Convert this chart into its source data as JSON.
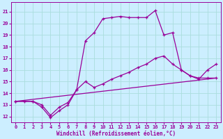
{
  "xlabel": "Windchill (Refroidissement éolien,°C)",
  "bg_color": "#cceeff",
  "line_color": "#990099",
  "grid_color": "#aadddd",
  "xlim": [
    -0.5,
    23.5
  ],
  "ylim": [
    11.5,
    21.8
  ],
  "xticks": [
    0,
    1,
    2,
    3,
    4,
    5,
    6,
    7,
    8,
    9,
    10,
    11,
    12,
    13,
    14,
    15,
    16,
    17,
    18,
    19,
    20,
    21,
    22,
    23
  ],
  "yticks": [
    12,
    13,
    14,
    15,
    16,
    17,
    18,
    19,
    20,
    21
  ],
  "line1_x": [
    0,
    1,
    2,
    3,
    4,
    5,
    6,
    7,
    8,
    9,
    10,
    11,
    12,
    13,
    14,
    15,
    16,
    17,
    18,
    19,
    20,
    21,
    22,
    23
  ],
  "line1_y": [
    13.3,
    13.3,
    13.3,
    13.0,
    12.1,
    12.8,
    13.2,
    14.3,
    18.5,
    19.2,
    20.4,
    20.5,
    20.6,
    20.5,
    20.5,
    20.5,
    21.1,
    19.0,
    19.2,
    16.0,
    15.5,
    15.3,
    15.3,
    15.3
  ],
  "line2_x": [
    0,
    2,
    3,
    4,
    5,
    6,
    7,
    8,
    9,
    10,
    11,
    12,
    13,
    14,
    15,
    16,
    17,
    18,
    19,
    20,
    21,
    22,
    23
  ],
  "line2_y": [
    13.3,
    13.3,
    12.8,
    11.9,
    12.5,
    13.0,
    14.3,
    15.0,
    14.5,
    14.8,
    15.2,
    15.5,
    15.8,
    16.2,
    16.5,
    17.0,
    17.2,
    16.5,
    16.0,
    15.5,
    15.2,
    16.0,
    16.5
  ],
  "line3_x": [
    0,
    23
  ],
  "line3_y": [
    13.3,
    15.3
  ]
}
